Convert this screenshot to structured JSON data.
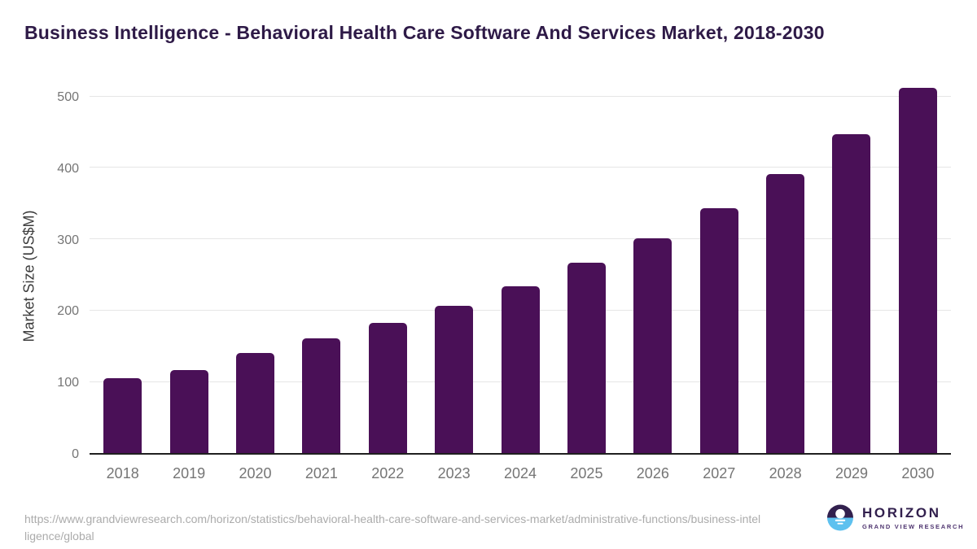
{
  "chart_data": {
    "type": "bar",
    "title": "Business Intelligence - Behavioral Health Care Software And Services Market, 2018-2030",
    "categories": [
      "2018",
      "2019",
      "2020",
      "2021",
      "2022",
      "2023",
      "2024",
      "2025",
      "2026",
      "2027",
      "2028",
      "2029",
      "2030"
    ],
    "values": [
      105,
      116,
      140,
      161,
      182,
      206,
      234,
      266,
      301,
      343,
      391,
      446,
      511
    ],
    "xlabel": "",
    "ylabel": "Market Size (US$M)",
    "ylim": [
      0,
      500
    ],
    "yticks": [
      0,
      100,
      200,
      300,
      400,
      500
    ],
    "grid": true,
    "legend": false,
    "bar_color": "#4a1057"
  },
  "colors": {
    "bar": "#4a1057",
    "title_text": "#2e1a47",
    "axis_text": "#757575",
    "gridline": "#e6e6e6",
    "source_text": "#ababab",
    "logo_purple": "#32204e",
    "logo_blue": "#5ec1ef"
  },
  "footer": {
    "source_url": "https://www.grandviewresearch.com/horizon/statistics/behavioral-health-care-software-and-services-market/administrative-functions/business-intelligence/global",
    "logo": {
      "name": "HORIZON",
      "subtitle": "GRAND VIEW RESEARCH"
    }
  }
}
